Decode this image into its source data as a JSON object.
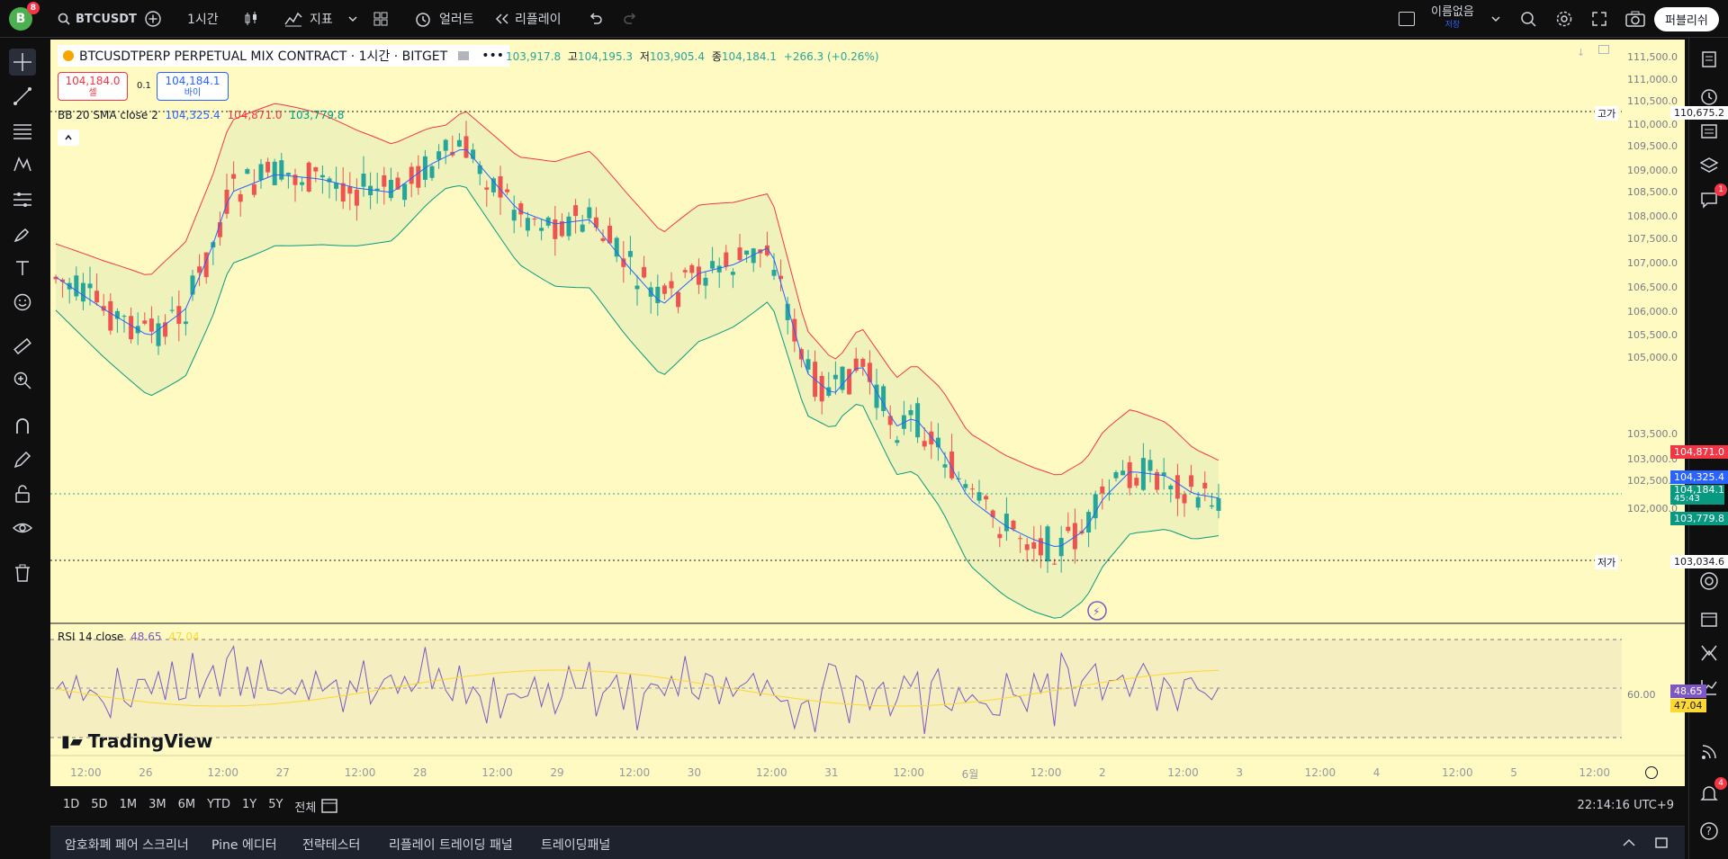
{
  "topbar": {
    "avatar_letter": "B",
    "avatar_badge": "8",
    "symbol": "BTCUSDT",
    "interval": "1시간",
    "indicators_label": "지표",
    "alert_label": "얼러트",
    "replay_label": "리플레이",
    "layout_name": "이름없음",
    "layout_status": "저장",
    "publish_label": "퍼블리쉬"
  },
  "legend": {
    "title": "BTCUSDTPERP PERPETUAL MIX CONTRACT · 1시간 · BITGET",
    "open_value": "103,917.8",
    "high_label": "고",
    "high_value": "104,195.3",
    "low_label": "저",
    "low_value": "103,905.4",
    "close_label": "종",
    "close_value": "104,184.1",
    "change": "+266.3 (+0.26%)",
    "sell_price": "104,184.0",
    "sell_label": "셀",
    "spread": "0.1",
    "buy_price": "104,184.1",
    "buy_label": "바이",
    "bb_label": "BB 20 SMA close 2",
    "bb_basis": "104,325.4",
    "bb_upper": "104,871.0",
    "bb_lower": "103,779.8"
  },
  "price_axis": {
    "ticks": [
      "111,500.0",
      "111,000.0",
      "110,500.0",
      "110,000.0",
      "109,500.0",
      "109,000.0",
      "108,500.0",
      "108,000.0",
      "107,500.0",
      "107,000.0",
      "106,500.0",
      "106,000.0",
      "105,500.0",
      "105,000.0",
      "103,500.0",
      "103,000.0",
      "102,500.0",
      "102,000.0"
    ],
    "high_label": "고가",
    "high_value": "110,675.2",
    "low_label": "저가",
    "low_value": "103,034.6",
    "upper_tag": "104,871.0",
    "basis_tag": "104,325.4",
    "last_tag": "104,184.1",
    "countdown": "45:43",
    "lower_tag": "103,779.8"
  },
  "rsi": {
    "label": "RSI 14 close",
    "value": "48.65",
    "ma_value": "47.04",
    "tick_60": "60.00",
    "tag_value": "48.65",
    "tag_ma": "47.04"
  },
  "watermark": "TradingView",
  "time_axis": [
    "12:00",
    "26",
    "12:00",
    "27",
    "12:00",
    "28",
    "12:00",
    "29",
    "12:00",
    "30",
    "12:00",
    "31",
    "12:00",
    "6월",
    "12:00",
    "2",
    "12:00",
    "3",
    "12:00",
    "4",
    "12:00",
    "5",
    "12:00"
  ],
  "bottombar": {
    "ranges": [
      "1D",
      "5D",
      "1M",
      "3M",
      "6M",
      "YTD",
      "1Y",
      "5Y",
      "전체"
    ],
    "clock": "22:14:16 UTC+9"
  },
  "footer": {
    "tabs": [
      "암호화폐 페어 스크리너",
      "Pine 에디터",
      "전략테스터",
      "리플레이 트레이딩 패널",
      "트레이딩패널"
    ]
  },
  "rightbar": {
    "chat_badge": "1",
    "bell_badge": "4"
  },
  "colors": {
    "chart_bg": "#fffac2",
    "up": "#26a69a",
    "down": "#ef5350",
    "bb_basis": "#2962ff",
    "bb_upper": "#f23645",
    "bb_lower": "#089981",
    "rsi_line": "#7e57c2",
    "rsi_ma": "#fdd835"
  }
}
